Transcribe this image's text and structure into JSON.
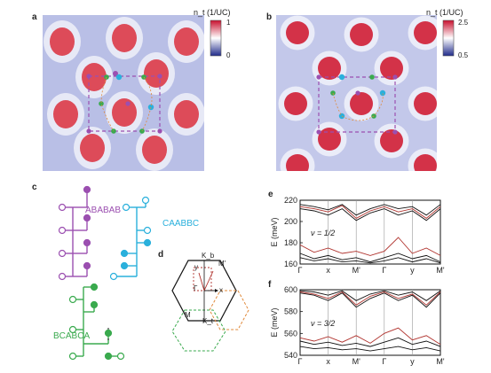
{
  "panels": {
    "a": {
      "letter": "a",
      "colorbar_title": "n_t (1/UC)",
      "cb_max": "1",
      "cb_min": "0"
    },
    "b": {
      "letter": "b",
      "colorbar_title": "n_t (1/UC)",
      "cb_max": "2.5",
      "cb_min": "0.5"
    },
    "c": {
      "letter": "c",
      "stack_labels": [
        "ABABAB",
        "CAABBC",
        "BCABCA"
      ]
    },
    "d": {
      "letter": "d",
      "labels": [
        "K_b",
        "M'",
        "y",
        "Γ",
        "x",
        "M",
        "K_t"
      ]
    },
    "e": {
      "letter": "e",
      "filling": "ν = 1/2"
    },
    "f": {
      "letter": "f",
      "filling": "ν = 3/2"
    }
  },
  "colors": {
    "purple": "#9b4fb0",
    "cyan": "#2ab0dc",
    "green": "#3aaa4e",
    "orange": "#e0893a",
    "red_band": "#b0322d",
    "black_band": "#111111"
  },
  "chart_data": [
    {
      "type": "line",
      "panel": "e",
      "title": "",
      "ylabel": "E (meV)",
      "ylim": [
        160,
        220
      ],
      "yticks": [
        160,
        180,
        200,
        220
      ],
      "xtick_labels": [
        "Γ",
        "x",
        "M'",
        "Γ",
        "y",
        "M'"
      ],
      "annotation": "ν = 1/2",
      "x": [
        0,
        0.5,
        1,
        1.5,
        2,
        2.5,
        3,
        3.5,
        4,
        4.5,
        5
      ],
      "series": [
        {
          "color": "red",
          "values": [
            214,
            212,
            209,
            215,
            203,
            210,
            214,
            209,
            212,
            203,
            214
          ]
        },
        {
          "color": "red",
          "values": [
            178,
            171,
            175,
            170,
            172,
            168,
            172,
            185,
            170,
            175,
            168
          ]
        },
        {
          "color": "black",
          "values": [
            216,
            214,
            211,
            216,
            206,
            212,
            216,
            212,
            214,
            206,
            216
          ]
        },
        {
          "color": "black",
          "values": [
            212,
            210,
            206,
            212,
            201,
            208,
            212,
            206,
            210,
            201,
            212
          ]
        },
        {
          "color": "black",
          "values": [
            170,
            165,
            168,
            164,
            166,
            162,
            166,
            170,
            165,
            168,
            162
          ]
        },
        {
          "color": "black",
          "values": [
            166,
            163,
            165,
            162,
            163,
            161,
            163,
            166,
            162,
            165,
            161
          ]
        }
      ]
    },
    {
      "type": "line",
      "panel": "f",
      "title": "",
      "ylabel": "E (meV)",
      "ylim": [
        540,
        600
      ],
      "yticks": [
        540,
        560,
        580,
        600
      ],
      "xtick_labels": [
        "Γ",
        "x",
        "M'",
        "Γ",
        "y",
        "M'"
      ],
      "annotation": "ν = 3/2",
      "x": [
        0,
        0.5,
        1,
        1.5,
        2,
        2.5,
        3,
        3.5,
        4,
        4.5,
        5
      ],
      "series": [
        {
          "color": "red",
          "values": [
            598,
            596,
            592,
            598,
            586,
            594,
            598,
            592,
            596,
            586,
            598
          ]
        },
        {
          "color": "red",
          "values": [
            556,
            553,
            557,
            552,
            558,
            551,
            560,
            565,
            554,
            558,
            550
          ]
        },
        {
          "color": "black",
          "values": [
            599,
            598,
            595,
            599,
            590,
            596,
            599,
            595,
            598,
            590,
            599
          ]
        },
        {
          "color": "black",
          "values": [
            597,
            595,
            590,
            597,
            584,
            592,
            597,
            590,
            595,
            584,
            597
          ]
        },
        {
          "color": "black",
          "values": [
            553,
            550,
            552,
            549,
            551,
            548,
            552,
            556,
            550,
            553,
            548
          ]
        },
        {
          "color": "black",
          "values": [
            548,
            546,
            547,
            545,
            546,
            544,
            546,
            548,
            545,
            547,
            544
          ]
        }
      ]
    }
  ]
}
